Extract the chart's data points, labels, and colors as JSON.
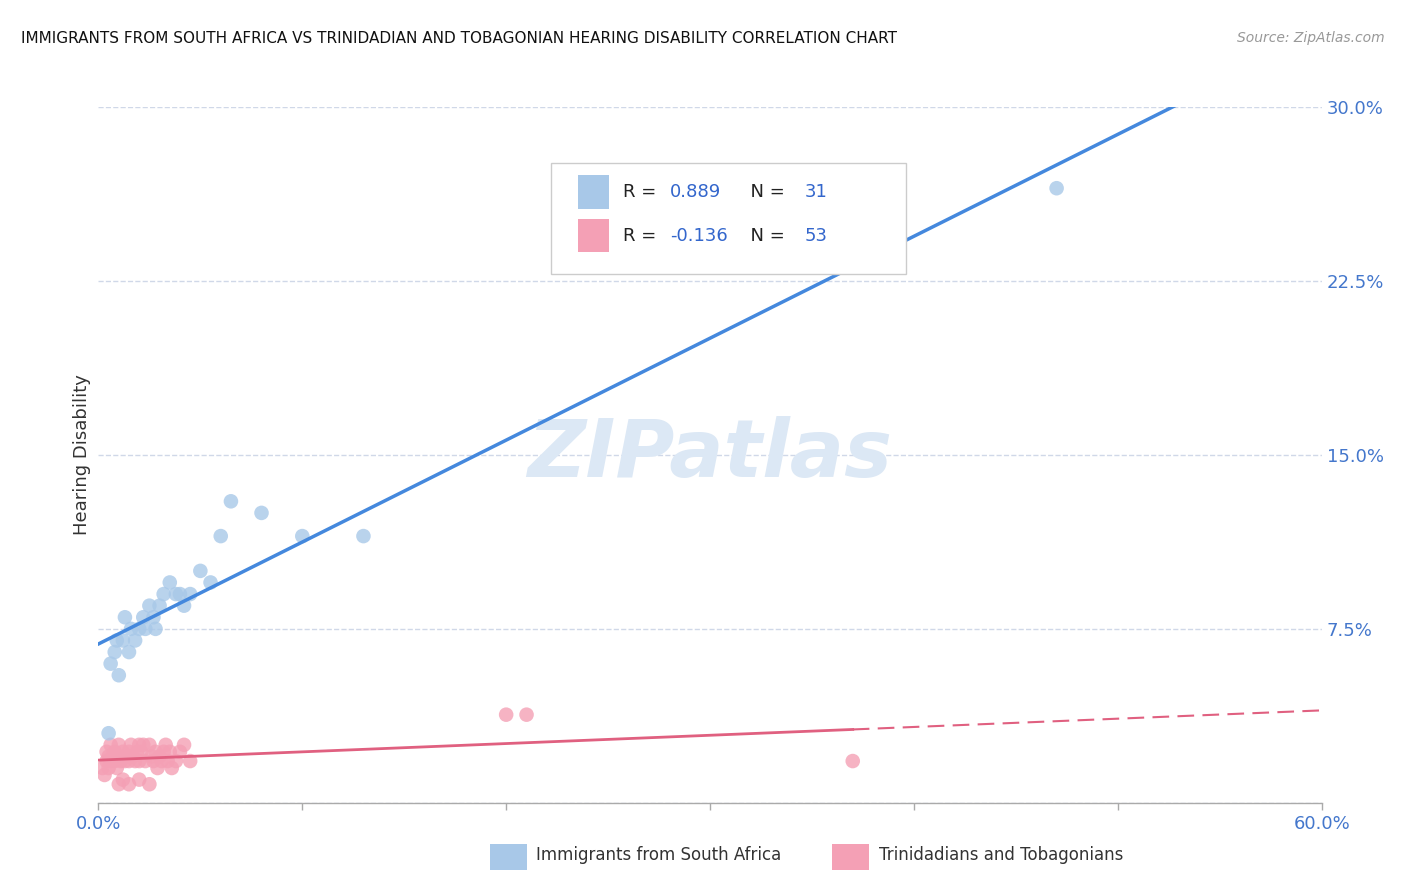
{
  "title": "IMMIGRANTS FROM SOUTH AFRICA VS TRINIDADIAN AND TOBAGONIAN HEARING DISABILITY CORRELATION CHART",
  "source": "Source: ZipAtlas.com",
  "ylabel": "Hearing Disability",
  "xlim": [
    0.0,
    0.6
  ],
  "ylim": [
    0.0,
    0.3
  ],
  "yticks": [
    0.0,
    0.075,
    0.15,
    0.225,
    0.3
  ],
  "ytick_labels": [
    "",
    "7.5%",
    "15.0%",
    "22.5%",
    "30.0%"
  ],
  "xtick_positions": [
    0.0,
    0.1,
    0.2,
    0.3,
    0.4,
    0.5,
    0.6
  ],
  "xtick_labels": [
    "0.0%",
    "",
    "",
    "",
    "",
    "",
    "60.0%"
  ],
  "blue_R": 0.889,
  "blue_N": 31,
  "pink_R": -0.136,
  "pink_N": 53,
  "blue_color": "#a8c8e8",
  "pink_color": "#f4a0b5",
  "blue_line_color": "#4488dd",
  "pink_line_color": "#e06080",
  "watermark_color": "#dce8f5",
  "blue_scatter_x": [
    0.005,
    0.006,
    0.008,
    0.009,
    0.01,
    0.012,
    0.013,
    0.015,
    0.016,
    0.018,
    0.02,
    0.022,
    0.023,
    0.025,
    0.027,
    0.028,
    0.03,
    0.032,
    0.035,
    0.038,
    0.04,
    0.042,
    0.045,
    0.05,
    0.055,
    0.06,
    0.065,
    0.08,
    0.1,
    0.13,
    0.47
  ],
  "blue_scatter_y": [
    0.03,
    0.06,
    0.065,
    0.07,
    0.055,
    0.07,
    0.08,
    0.065,
    0.075,
    0.07,
    0.075,
    0.08,
    0.075,
    0.085,
    0.08,
    0.075,
    0.085,
    0.09,
    0.095,
    0.09,
    0.09,
    0.085,
    0.09,
    0.1,
    0.095,
    0.115,
    0.13,
    0.125,
    0.115,
    0.115,
    0.265
  ],
  "pink_scatter_x": [
    0.002,
    0.003,
    0.004,
    0.004,
    0.005,
    0.005,
    0.006,
    0.006,
    0.007,
    0.008,
    0.008,
    0.009,
    0.01,
    0.01,
    0.011,
    0.012,
    0.013,
    0.014,
    0.015,
    0.015,
    0.016,
    0.017,
    0.018,
    0.019,
    0.02,
    0.02,
    0.021,
    0.022,
    0.023,
    0.025,
    0.026,
    0.027,
    0.028,
    0.029,
    0.03,
    0.031,
    0.032,
    0.033,
    0.034,
    0.035,
    0.036,
    0.038,
    0.04,
    0.042,
    0.045,
    0.01,
    0.012,
    0.015,
    0.02,
    0.025,
    0.2,
    0.21,
    0.37
  ],
  "pink_scatter_y": [
    0.015,
    0.012,
    0.018,
    0.022,
    0.02,
    0.015,
    0.018,
    0.025,
    0.02,
    0.018,
    0.022,
    0.015,
    0.02,
    0.025,
    0.018,
    0.022,
    0.018,
    0.02,
    0.022,
    0.018,
    0.025,
    0.02,
    0.018,
    0.022,
    0.025,
    0.018,
    0.022,
    0.025,
    0.018,
    0.025,
    0.02,
    0.018,
    0.022,
    0.015,
    0.02,
    0.018,
    0.022,
    0.025,
    0.018,
    0.022,
    0.015,
    0.018,
    0.022,
    0.025,
    0.018,
    0.008,
    0.01,
    0.008,
    0.01,
    0.008,
    0.038,
    0.038,
    0.018
  ],
  "background_color": "#ffffff",
  "grid_color": "#d0d8e8"
}
